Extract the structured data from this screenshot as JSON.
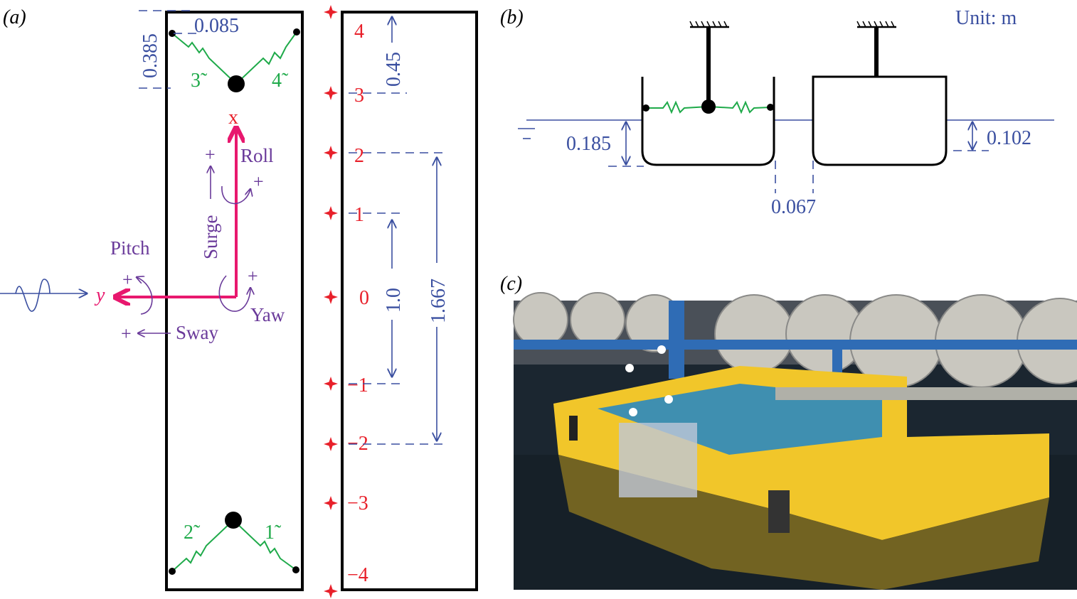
{
  "panels": {
    "a": {
      "label": "(a)",
      "dims": {
        "d0385": "0.385",
        "d0085": "0.085",
        "d045": "0.45",
        "d10": "1.0",
        "d1667": "1.667"
      },
      "springs": [
        "3̃",
        "4̃",
        "2̃",
        "1̃"
      ],
      "axes": {
        "x": "x",
        "y": "y"
      },
      "motions": {
        "roll": "Roll",
        "surge": "Surge",
        "pitch": "Pitch",
        "yaw": "Yaw",
        "sway": "Sway",
        "plus": "+"
      },
      "gauges": [
        "4",
        "3",
        "2",
        "1",
        "0",
        "−1",
        "−2",
        "−3",
        "−4"
      ]
    },
    "b": {
      "label": "(b)",
      "unit": "Unit: m",
      "dims": {
        "d0185": "0.185",
        "d0102": "0.102",
        "d0067": "0.067"
      }
    },
    "c": {
      "label": "(c)"
    }
  },
  "colors": {
    "dimension": "#3a4fa0",
    "gauge": "#e8202a",
    "spring": "#1faa4a",
    "motion": "#6a3a9a",
    "axis": "#e8186e"
  }
}
